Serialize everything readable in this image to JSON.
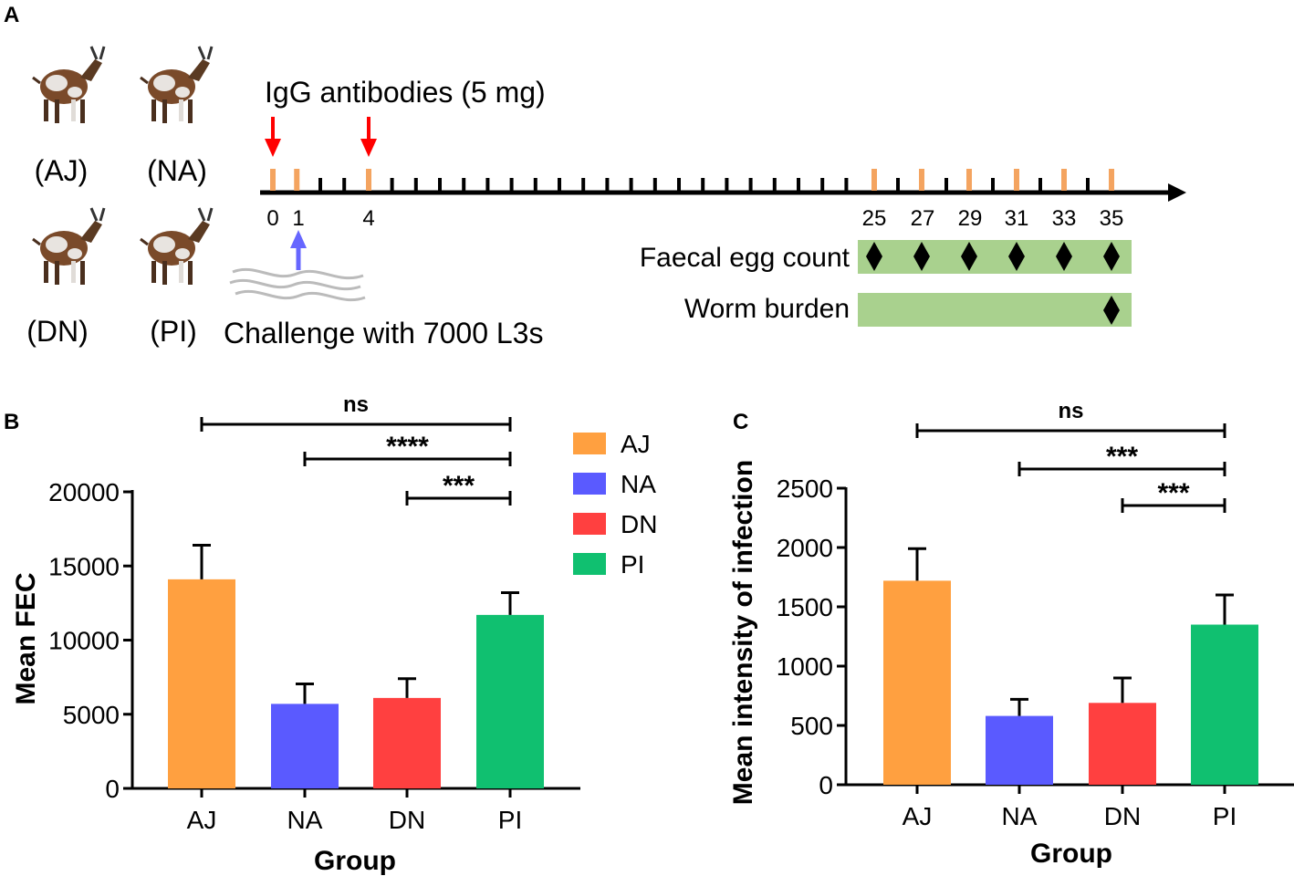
{
  "panel_a": {
    "label": "A",
    "groups": [
      "(AJ)",
      "(NA)",
      "(DN)",
      "(PI)"
    ],
    "igg_label": "IgG antibodies (5 mg)",
    "challenge_label": "Challenge with 7000 L3s",
    "day_labels": [
      "0",
      "1",
      "4",
      "25",
      "27",
      "29",
      "31",
      "33",
      "35"
    ],
    "injection_days": [
      0,
      4
    ],
    "challenge_day": 1,
    "fec_label": "Faecal egg count",
    "fec_days": [
      25,
      27,
      29,
      31,
      33,
      35
    ],
    "worm_label": "Worm burden",
    "worm_days": [
      35
    ],
    "colors": {
      "igg_arrow": "#ff0000",
      "challenge_arrow": "#6666ff",
      "bar_fill": "#a9d18e",
      "tick_orange": "#f4a460"
    }
  },
  "legend": {
    "entries": [
      {
        "name": "AJ",
        "color": "#ffa040"
      },
      {
        "name": "NA",
        "color": "#5a5aff"
      },
      {
        "name": "DN",
        "color": "#ff4040"
      },
      {
        "name": "PI",
        "color": "#10c070"
      }
    ]
  },
  "chart_data": [
    {
      "panel": "B",
      "type": "bar",
      "categories": [
        "AJ",
        "NA",
        "DN",
        "PI"
      ],
      "values": [
        14100,
        5700,
        6100,
        11700
      ],
      "errors": [
        2300,
        1350,
        1300,
        1500
      ],
      "colors": [
        "#ffa040",
        "#5a5aff",
        "#ff4040",
        "#10c070"
      ],
      "ylabel": "Mean FEC",
      "xlabel": "Group",
      "ylim": [
        0,
        20000
      ],
      "yticks": [
        "0",
        "5000",
        "10000",
        "15000",
        "20000"
      ],
      "yticks_values": [
        0,
        5000,
        10000,
        15000,
        20000
      ],
      "significance": [
        {
          "from": "AJ",
          "to": "PI",
          "label": "ns"
        },
        {
          "from": "NA",
          "to": "PI",
          "label": "****"
        },
        {
          "from": "DN",
          "to": "PI",
          "label": "***"
        }
      ]
    },
    {
      "panel": "C",
      "type": "bar",
      "categories": [
        "AJ",
        "NA",
        "DN",
        "PI"
      ],
      "values": [
        1720,
        580,
        690,
        1350
      ],
      "errors": [
        270,
        140,
        210,
        250
      ],
      "colors": [
        "#ffa040",
        "#5a5aff",
        "#ff4040",
        "#10c070"
      ],
      "ylabel": "Mean intensity of infection",
      "xlabel": "Group",
      "ylim": [
        0,
        2500
      ],
      "yticks": [
        "0",
        "500",
        "1000",
        "1500",
        "2000",
        "2500"
      ],
      "yticks_values": [
        0,
        500,
        1000,
        1500,
        2000,
        2500
      ],
      "significance": [
        {
          "from": "AJ",
          "to": "PI",
          "label": "ns"
        },
        {
          "from": "NA",
          "to": "PI",
          "label": "***"
        },
        {
          "from": "DN",
          "to": "PI",
          "label": "***"
        }
      ]
    }
  ]
}
